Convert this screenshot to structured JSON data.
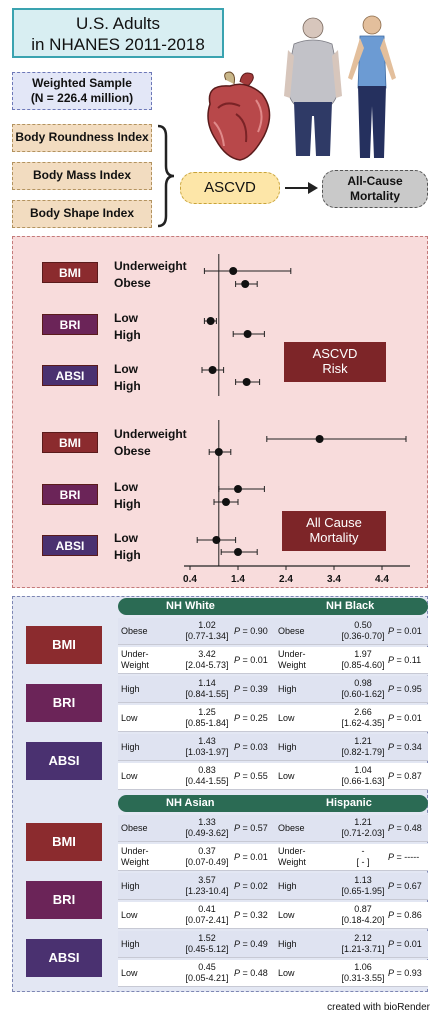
{
  "header": {
    "title_line1": "U.S. Adults",
    "title_line2": "in NHANES 2011-2018"
  },
  "sample": {
    "line1": "Weighted Sample",
    "line2": "(N = 226.4 million)"
  },
  "indices": [
    "Body Roundness Index",
    "Body Mass Index",
    "Body Shape Index"
  ],
  "flow": {
    "ascvd": "ASCVD",
    "mortality_line1": "All-Cause",
    "mortality_line2": "Mortality"
  },
  "forest": {
    "ascvd_panel": {
      "label_line1": "ASCVD",
      "label_line2": "Risk",
      "rows": [
        {
          "badge": "BMI",
          "labels": [
            "Underweight",
            "Obese"
          ]
        },
        {
          "badge": "BRI",
          "labels": [
            "Low",
            "High"
          ]
        },
        {
          "badge": "ABSI",
          "labels": [
            "Low",
            "High"
          ]
        }
      ]
    },
    "mortality_panel": {
      "label_line1": "All Cause",
      "label_line2": "Mortality",
      "rows": [
        {
          "badge": "BMI",
          "labels": [
            "Underweight",
            "Obese"
          ]
        },
        {
          "badge": "BRI",
          "labels": [
            "Low",
            "High"
          ]
        },
        {
          "badge": "ABSI",
          "labels": [
            "Low",
            "High"
          ]
        }
      ]
    },
    "axis_ticks": [
      "0.4",
      "1.4",
      "2.4",
      "3.4",
      "4.4"
    ]
  },
  "chart_data": {
    "type": "scatter",
    "xlim": [
      0.4,
      4.4
    ],
    "reference_line": 1.0,
    "ascvd": [
      {
        "index": "BMI",
        "group": "Underweight",
        "estimate": 1.3,
        "low": 0.7,
        "high": 2.5
      },
      {
        "index": "BMI",
        "group": "Obese",
        "estimate": 1.55,
        "low": 1.35,
        "high": 1.8
      },
      {
        "index": "BRI",
        "group": "Low",
        "estimate": 0.83,
        "low": 0.7,
        "high": 0.95
      },
      {
        "index": "BRI",
        "group": "High",
        "estimate": 1.6,
        "low": 1.3,
        "high": 1.95
      },
      {
        "index": "ABSI",
        "group": "Low",
        "estimate": 0.87,
        "low": 0.65,
        "high": 1.1
      },
      {
        "index": "ABSI",
        "group": "High",
        "estimate": 1.58,
        "low": 1.35,
        "high": 1.85
      }
    ],
    "mortality": [
      {
        "index": "BMI",
        "group": "Underweight",
        "estimate": 3.1,
        "low": 2.0,
        "high": 4.9
      },
      {
        "index": "BMI",
        "group": "Obese",
        "estimate": 1.0,
        "low": 0.8,
        "high": 1.25
      },
      {
        "index": "BRI",
        "group": "Low",
        "estimate": 1.4,
        "low": 1.0,
        "high": 1.95
      },
      {
        "index": "BRI",
        "group": "High",
        "estimate": 1.15,
        "low": 0.9,
        "high": 1.4
      },
      {
        "index": "ABSI",
        "group": "Low",
        "estimate": 0.95,
        "low": 0.55,
        "high": 1.35
      },
      {
        "index": "ABSI",
        "group": "High",
        "estimate": 1.4,
        "low": 1.05,
        "high": 1.8
      }
    ]
  },
  "table": {
    "sections": [
      {
        "left_group": "NH White",
        "right_group": "NH Black",
        "blocks": [
          {
            "badge": "BMI",
            "rows": [
              {
                "l_lab": "Obese",
                "l_or": "1.02",
                "l_ci": "[0.77-1.34]",
                "l_p": "0.90",
                "r_lab": "Obese",
                "r_or": "0.50",
                "r_ci": "[0.36-0.70]",
                "r_p": "0.01"
              },
              {
                "l_lab": "Under-\nWeight",
                "l_or": "3.42",
                "l_ci": "[2.04-5.73]",
                "l_p": "0.01",
                "r_lab": "Under-\nWeight",
                "r_or": "1.97",
                "r_ci": "[0.85-4.60]",
                "r_p": "0.11"
              }
            ]
          },
          {
            "badge": "BRI",
            "rows": [
              {
                "l_lab": "High",
                "l_or": "1.14",
                "l_ci": "[0.84-1.55]",
                "l_p": "0.39",
                "r_lab": "High",
                "r_or": "0.98",
                "r_ci": "[0.60-1.62]",
                "r_p": "0.95"
              },
              {
                "l_lab": "Low",
                "l_or": "1.25",
                "l_ci": "[0.85-1.84]",
                "l_p": "0.25",
                "r_lab": "Low",
                "r_or": "2.66",
                "r_ci": "[1.62-4.35]",
                "r_p": "0.01"
              }
            ]
          },
          {
            "badge": "ABSI",
            "rows": [
              {
                "l_lab": "High",
                "l_or": "1.43",
                "l_ci": "[1.03-1.97]",
                "l_p": "0.03",
                "r_lab": "High",
                "r_or": "1.21",
                "r_ci": "[0.82-1.79]",
                "r_p": "0.34"
              },
              {
                "l_lab": "Low",
                "l_or": "0.83",
                "l_ci": "[0.44-1.55]",
                "l_p": "0.55",
                "r_lab": "Low",
                "r_or": "1.04",
                "r_ci": "[0.66-1.63]",
                "r_p": "0.87"
              }
            ]
          }
        ]
      },
      {
        "left_group": "NH Asian",
        "right_group": "Hispanic",
        "blocks": [
          {
            "badge": "BMI",
            "rows": [
              {
                "l_lab": "Obese",
                "l_or": "1.33",
                "l_ci": "[0.49-3.62]",
                "l_p": "0.57",
                "r_lab": "Obese",
                "r_or": "1.21",
                "r_ci": "[0.71-2.03]",
                "r_p": "0.48"
              },
              {
                "l_lab": "Under-\nWeight",
                "l_or": "0.37",
                "l_ci": "[0.07-0.49]",
                "l_p": "0.01",
                "r_lab": "Under-\nWeight",
                "r_or": "-",
                "r_ci": "[     -     ]",
                "r_p": "-----"
              }
            ]
          },
          {
            "badge": "BRI",
            "rows": [
              {
                "l_lab": "High",
                "l_or": "3.57",
                "l_ci": "[1.23-10.4]",
                "l_p": "0.02",
                "r_lab": "High",
                "r_or": "1.13",
                "r_ci": "[0.65-1.95]",
                "r_p": "0.67"
              },
              {
                "l_lab": "Low",
                "l_or": "0.41",
                "l_ci": "[0.07-2.41]",
                "l_p": "0.32",
                "r_lab": "Low",
                "r_or": "0.87",
                "r_ci": "[0.18-4.20]",
                "r_p": "0.86"
              }
            ]
          },
          {
            "badge": "ABSI",
            "rows": [
              {
                "l_lab": "High",
                "l_or": "1.52",
                "l_ci": "[0.45-5.12]",
                "l_p": "0.49",
                "r_lab": "High",
                "r_or": "2.12",
                "r_ci": "[1.21-3.71]",
                "r_p": "0.01"
              },
              {
                "l_lab": "Low",
                "l_or": "0.45",
                "l_ci": "[0.05-4.21]",
                "l_p": "0.48",
                "r_lab": "Low",
                "r_or": "1.06",
                "r_ci": "[0.31-3.55]",
                "r_p": "0.93"
              }
            ]
          }
        ]
      }
    ],
    "p_prefix": "P",
    "p_eq": " = "
  },
  "footer": "created with bioRender",
  "colors": {
    "bmi": "#8b2b2e",
    "bri": "#6b2458",
    "absi": "#4a3170",
    "table_header": "#2b6b54",
    "forest_bg": "#f8dcdc",
    "table_bg": "#e3e7f3"
  },
  "icons": [
    "heart-icon",
    "obese-person-icon",
    "slim-person-icon",
    "brace-icon",
    "arrow-right-icon"
  ]
}
